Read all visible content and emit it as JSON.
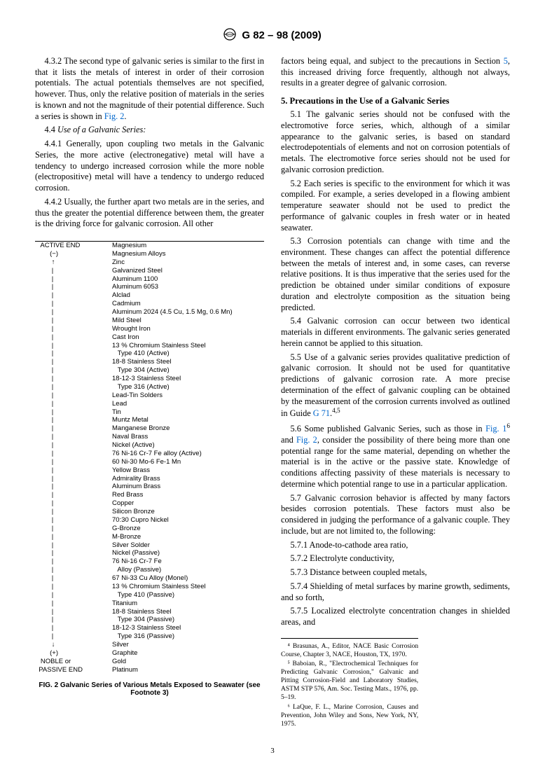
{
  "header": {
    "designation": "G 82 – 98 (2009)"
  },
  "left_paragraphs": {
    "p1": "4.3.2 The second type of galvanic series is similar to the first in that it lists the metals of interest in order of their corrosion potentials. The actual potentials themselves are not specified, however. Thus, only the relative position of materials in the series is known and not the magnitude of their potential difference. Such a series is shown in ",
    "p1_link": "Fig. 2",
    "p2_head": "4.4 ",
    "p2_title": "Use of a Galvanic Series:",
    "p3": "4.4.1 Generally, upon coupling two metals in the Galvanic Series, the more active (electronegative) metal will have a tendency to undergo increased corrosion while the more noble (electropositive) metal will have a tendency to undergo reduced corrosion.",
    "p4": "4.4.2 Usually, the further apart two metals are in the series, and thus the greater the potential difference between them, the greater is the driving force for galvanic corrosion. All other"
  },
  "right_paragraphs": {
    "p1a": "factors being equal, and subject to the precautions in Section ",
    "p1_link": "5",
    "p1b": ", this increased driving force frequently, although not always, results in a greater degree of galvanic corrosion.",
    "sec5": "5. Precautions in the Use of a Galvanic Series",
    "p2": "5.1 The galvanic series should not be confused with the electromotive force series, which, although of a similar appearance to the galvanic series, is based on standard electrodepotentials of elements and not on corrosion potentials of metals. The electromotive force series should not be used for galvanic corrosion prediction.",
    "p3": "5.2 Each series is specific to the environment for which it was compiled. For example, a series developed in a flowing ambient temperature seawater should not be used to predict the performance of galvanic couples in fresh water or in heated seawater.",
    "p4": "5.3 Corrosion potentials can change with time and the environment. These changes can affect the potential difference between the metals of interest and, in some cases, can reverse relative positions. It is thus imperative that the series used for the prediction be obtained under similar conditions of exposure duration and electrolyte composition as the situation being predicted.",
    "p5": "5.4 Galvanic corrosion can occur between two identical materials in different environments. The galvanic series generated herein cannot be applied to this situation.",
    "p6a": "5.5 Use of a galvanic series provides qualitative prediction of galvanic corrosion. It should not be used for quantitative predictions of galvanic corrosion rate. A more precise determination of the effect of galvanic coupling can be obtained by the measurement of the corrosion currents involved as outlined in Guide ",
    "p6_link": "G 71",
    "p6_sup": "4,5",
    "p7a": "5.6 Some published Galvanic Series, such as those in ",
    "p7_link1": "Fig. 1",
    "p7_sup": "6",
    "p7b": " and ",
    "p7_link2": "Fig. 2",
    "p7c": ", consider the possibility of there being more than one potential range for the same material, depending on whether the material is in the active or the passive state. Knowledge of conditions affecting passivity of these materials is necessary to determine which potential range to use in a particular application.",
    "p8": "5.7 Galvanic corrosion behavior is affected by many factors besides corrosion potentials. These factors must also be considered in judging the performance of a galvanic couple. They include, but are not limited to, the following:",
    "p8_1": "5.7.1 Anode-to-cathode area ratio,",
    "p8_2": "5.7.2 Electrolyte conductivity,",
    "p8_3": "5.7.3 Distance between coupled metals,",
    "p8_4": "5.7.4 Shielding of metal surfaces by marine growth, sediments, and so forth,",
    "p8_5": "5.7.5 Localized electrolyte concentration changes in shielded areas, and"
  },
  "fig2": {
    "top_label_a": "ACTIVE END",
    "top_label_b": "(−)",
    "bot_label_a": "(+)",
    "bot_label_b1": "NOBLE or",
    "bot_label_b2": "PASSIVE END",
    "arrow_up": "↑",
    "arrow_down": "↓",
    "bar": "|",
    "materials": [
      "Magnesium",
      "Magnesium Alloys",
      "Zinc",
      "Galvanized Steel",
      "Aluminum 1100",
      "Aluminum 6053",
      "Alclad",
      "Cadmium",
      "Aluminum 2024 (4.5 Cu, 1.5 Mg, 0.6 Mn)",
      "Mild Steel",
      "Wrought Iron",
      "Cast Iron",
      "13 % Chromium Stainless Steel",
      "   Type 410 (Active)",
      "18-8 Stainless Steel",
      "   Type 304 (Active)",
      "18-12-3 Stainless Steel",
      "   Type 316 (Active)",
      "Lead-Tin Solders",
      "Lead",
      "Tin",
      "Muntz Metal",
      "Manganese Bronze",
      "Naval Brass",
      "Nickel (Active)",
      "76 Ni-16 Cr-7 Fe alloy (Active)",
      "60 Ni-30 Mo-6 Fe-1 Mn",
      "Yellow Brass",
      "Admirality Brass",
      "Aluminum Brass",
      "Red Brass",
      "Copper",
      "Silicon Bronze",
      "70:30 Cupro Nickel",
      "G-Bronze",
      "M-Bronze",
      "Silver Solder",
      "Nickel (Passive)",
      "76 Ni-16 Cr-7 Fe",
      "   Alloy (Passive)",
      "67 Ni-33 Cu Alloy (Monel)",
      "13 % Chromium Stainless Steel",
      "   Type 410 (Passive)",
      "Titanium",
      "18-8 Stainless Steel",
      "   Type 304 (Passive)",
      "18-12-3 Stainless Steel",
      "   Type 316 (Passive)",
      "Silver",
      "Graphite",
      "Gold",
      "Platinum"
    ],
    "caption": "FIG. 2  Galvanic Series of Various Metals Exposed to Seawater (see Footnote 3)"
  },
  "footnotes": {
    "f4": "⁴ Brasunas, A., Editor, NACE Basic Corrosion Course, Chapter 3, NACE, Houston, TX, 1970.",
    "f5": "⁵ Baboian, R., \"Electrochemical Techniques for Predicting Galvanic Corrosion,\" Galvanic and Pitting Corrosion-Field and Laboratory Studies, ASTM STP 576, Am. Soc. Testing Mats., 1976, pp. 5–19.",
    "f6": "⁶ LaQue, F. L., Marine Corrosion, Causes and Prevention, John Wiley and Sons, New York, NY, 1975."
  },
  "pagenum": "3"
}
